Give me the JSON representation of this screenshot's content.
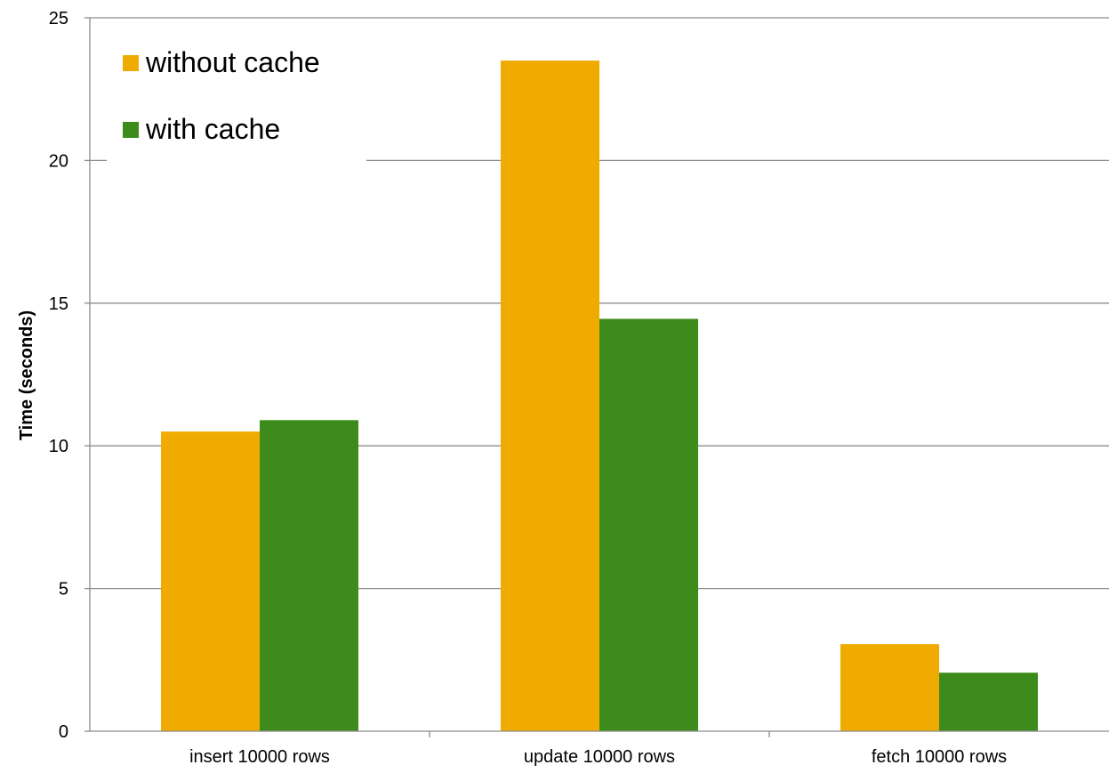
{
  "chart_data": {
    "type": "bar",
    "title": "",
    "xlabel": "",
    "ylabel": "Time (seconds)",
    "ylim": [
      0,
      25
    ],
    "yticks": [
      0,
      5,
      10,
      15,
      20,
      25
    ],
    "categories": [
      "insert 10000 rows",
      "update 10000 rows",
      "fetch 10000 rows"
    ],
    "series": [
      {
        "name": "without cache",
        "color": "#F0AB00",
        "values": [
          10.5,
          23.5,
          3.05
        ]
      },
      {
        "name": "with cache",
        "color": "#3D8B1A",
        "values": [
          10.9,
          14.45,
          2.05
        ]
      }
    ],
    "grid": true,
    "legend_position": "top-left",
    "gridline_color": "#8C8C8C"
  }
}
